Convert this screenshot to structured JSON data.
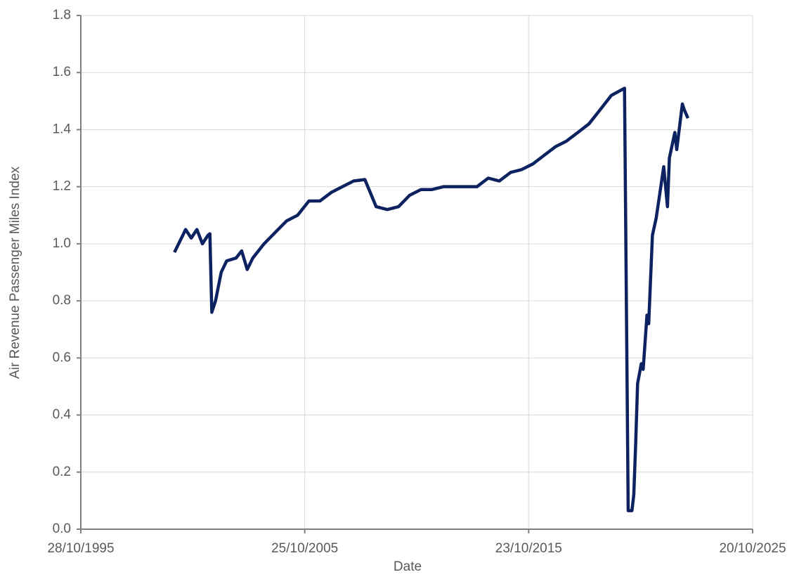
{
  "chart_data": {
    "type": "line",
    "x_label": "Date",
    "y_label": "Air Revenue Passenger Miles Index",
    "xlim": [
      "28/10/1995",
      "20/10/2025"
    ],
    "xticks": [
      "28/10/1995",
      "25/10/2005",
      "23/10/2015",
      "20/10/2025"
    ],
    "ylim": [
      0,
      1.8
    ],
    "yticks": [
      {
        "value": 0,
        "label": "0.0"
      },
      {
        "value": 0.2,
        "label": "0.2"
      },
      {
        "value": 0.4,
        "label": "0.4"
      },
      {
        "value": 0.6,
        "label": "0.6"
      },
      {
        "value": 0.8,
        "label": "0.8"
      },
      {
        "value": 1,
        "label": "1.0"
      },
      {
        "value": 1.2,
        "label": "1.2"
      },
      {
        "value": 1.4,
        "label": "1.4"
      },
      {
        "value": 1.6,
        "label": "1.6"
      },
      {
        "value": 1.8,
        "label": "1.8"
      }
    ],
    "grid": true,
    "x": [
      "01/01/2000",
      "01/04/2000",
      "01/07/2000",
      "01/10/2000",
      "01/01/2001",
      "01/04/2001",
      "01/07/2001",
      "01/08/2001",
      "01/09/2001",
      "01/11/2001",
      "01/02/2002",
      "01/05/2002",
      "01/10/2002",
      "01/01/2003",
      "01/04/2003",
      "01/07/2003",
      "01/01/2004",
      "01/07/2004",
      "01/01/2005",
      "01/07/2005",
      "01/01/2006",
      "01/07/2006",
      "01/01/2007",
      "01/07/2007",
      "01/01/2008",
      "01/07/2008",
      "01/01/2009",
      "01/07/2009",
      "01/01/2010",
      "01/07/2010",
      "01/01/2011",
      "01/07/2011",
      "01/01/2012",
      "01/07/2012",
      "01/01/2013",
      "01/07/2013",
      "01/01/2014",
      "01/07/2014",
      "01/01/2015",
      "01/07/2015",
      "01/01/2016",
      "01/07/2016",
      "01/01/2017",
      "01/07/2017",
      "01/01/2018",
      "01/07/2018",
      "01/01/2019",
      "01/07/2019",
      "01/02/2020",
      "01/04/2020",
      "01/06/2020",
      "01/07/2020",
      "01/08/2020",
      "01/09/2020",
      "01/11/2020",
      "01/12/2020",
      "01/02/2021",
      "01/03/2021",
      "01/05/2021",
      "01/07/2021",
      "01/09/2021",
      "01/11/2021",
      "01/01/2022",
      "01/02/2022",
      "01/05/2022",
      "01/06/2022",
      "01/09/2022",
      "01/10/2022",
      "01/12/2022"
    ],
    "series": [
      {
        "name": "Air Revenue Passenger Miles Index",
        "color": "#0d2260",
        "values": [
          0.97,
          1.01,
          1.05,
          1.02,
          1.05,
          1.0,
          1.03,
          1.035,
          0.76,
          0.8,
          0.9,
          0.94,
          0.95,
          0.975,
          0.91,
          0.95,
          1.0,
          1.04,
          1.08,
          1.1,
          1.15,
          1.15,
          1.18,
          1.2,
          1.22,
          1.225,
          1.13,
          1.12,
          1.13,
          1.17,
          1.19,
          1.19,
          1.2,
          1.2,
          1.2,
          1.2,
          1.23,
          1.22,
          1.25,
          1.26,
          1.28,
          1.31,
          1.34,
          1.36,
          1.39,
          1.42,
          1.47,
          1.52,
          1.545,
          0.065,
          0.065,
          0.12,
          0.3,
          0.51,
          0.58,
          0.56,
          0.75,
          0.72,
          1.03,
          1.09,
          1.18,
          1.27,
          1.13,
          1.3,
          1.39,
          1.33,
          1.49,
          1.47,
          1.44
        ]
      }
    ]
  }
}
